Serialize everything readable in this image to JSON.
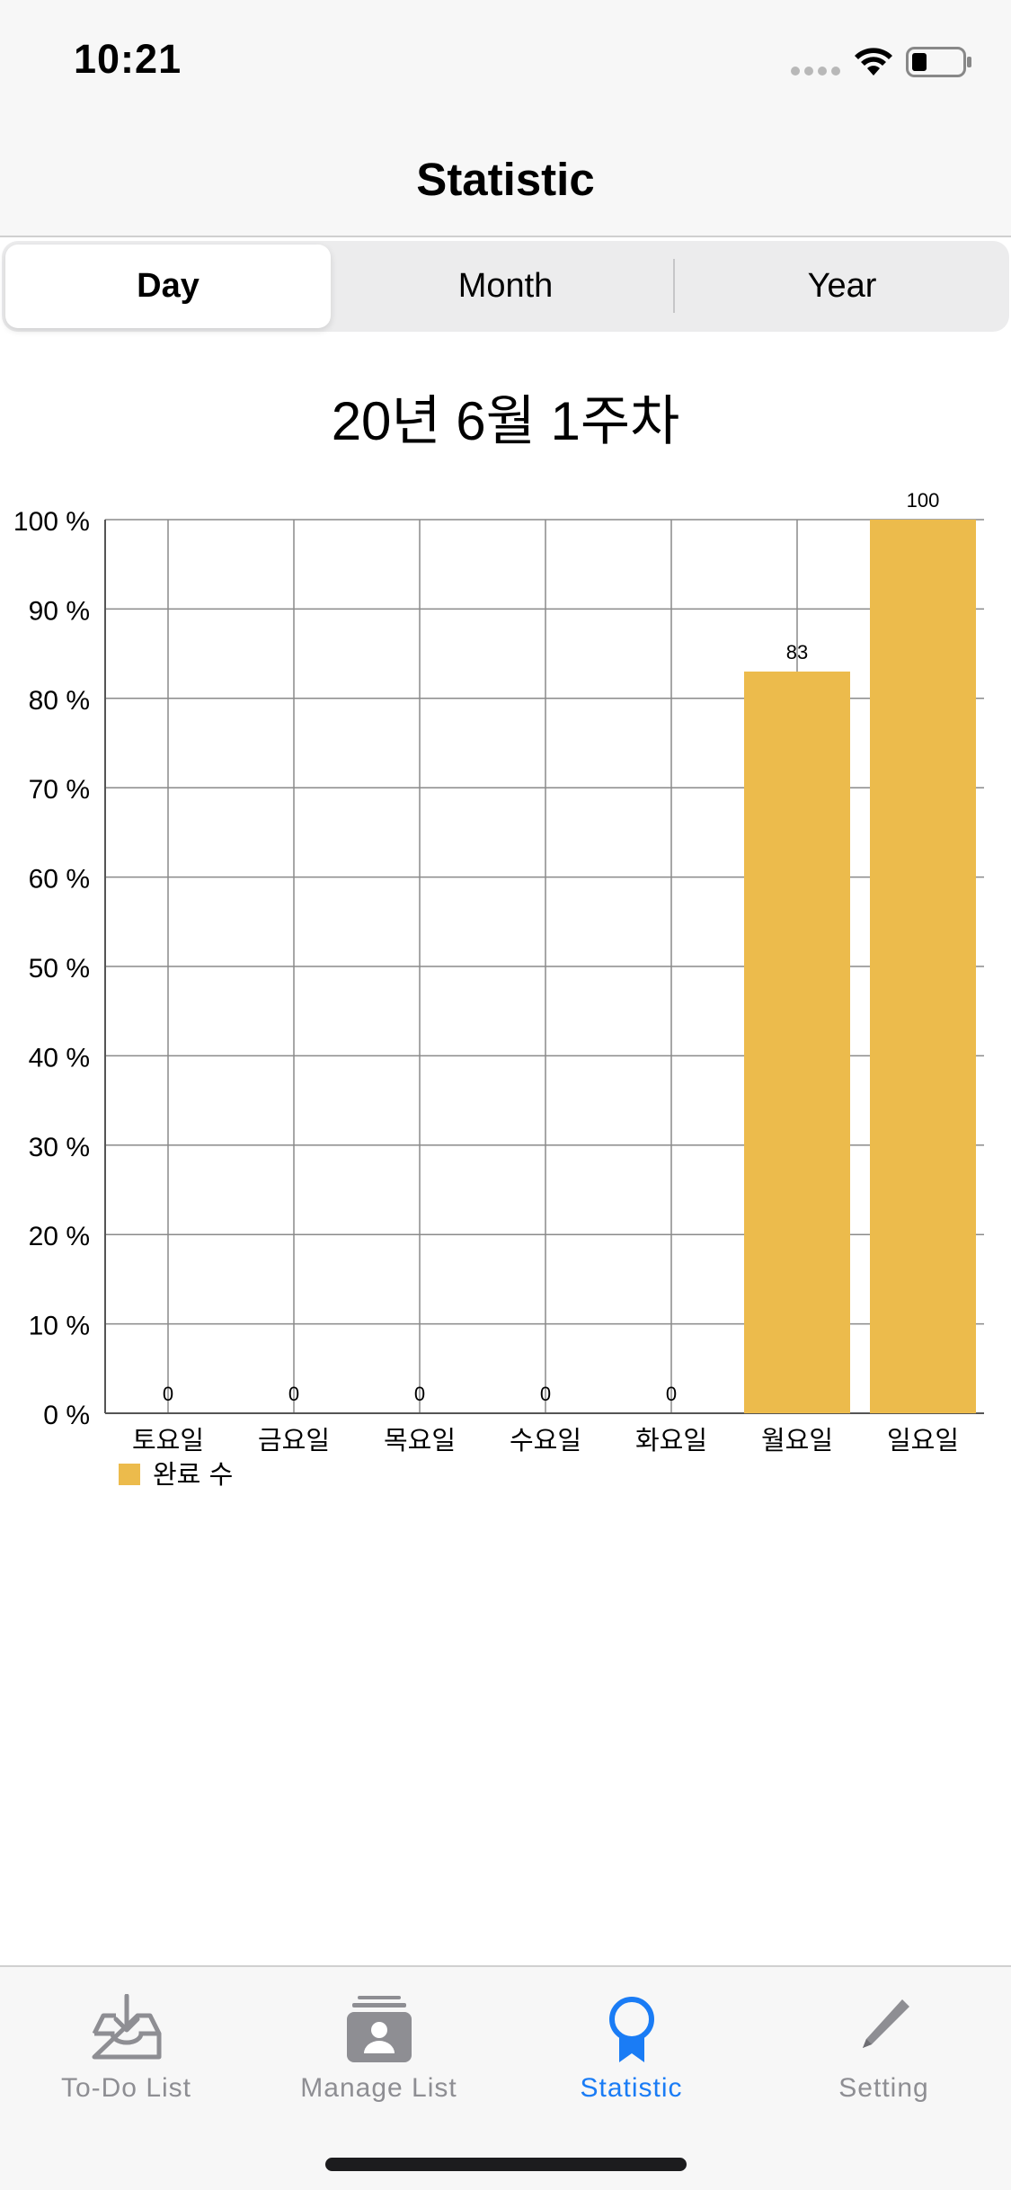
{
  "status_bar": {
    "time": "10:21"
  },
  "nav": {
    "title": "Statistic"
  },
  "segments": [
    {
      "label": "Day",
      "selected": true
    },
    {
      "label": "Month",
      "selected": false
    },
    {
      "label": "Year",
      "selected": false
    }
  ],
  "week_title": "20년 6월 1주차",
  "chart_data": {
    "type": "bar",
    "categories": [
      "토요일",
      "금요일",
      "목요일",
      "수요일",
      "화요일",
      "월요일",
      "일요일"
    ],
    "values": [
      0,
      0,
      0,
      0,
      0,
      83,
      100
    ],
    "value_labels": [
      "0",
      "0",
      "0",
      "0",
      "0",
      "83",
      "100"
    ],
    "y_ticks": [
      "0 %",
      "10 %",
      "20 %",
      "30 %",
      "40 %",
      "50 %",
      "60 %",
      "70 %",
      "80 %",
      "90 %",
      "100 %"
    ],
    "ylim": [
      0,
      100
    ],
    "grid": true,
    "legend_position": "bottom-left",
    "series": [
      {
        "name": "완료 수",
        "color": "#ecbb4c",
        "values": [
          0,
          0,
          0,
          0,
          0,
          83,
          100
        ]
      }
    ]
  },
  "tabs": [
    {
      "label": "To-Do List",
      "icon": "inbox-tray-icon",
      "active": false
    },
    {
      "label": "Manage List",
      "icon": "contact-card-icon",
      "active": false
    },
    {
      "label": "Statistic",
      "icon": "award-ribbon-icon",
      "active": true
    },
    {
      "label": "Setting",
      "icon": "pencil-icon",
      "active": false
    }
  ],
  "colors": {
    "accent": "#1a7cf5",
    "bar": "#ecbb4c",
    "inactive": "#8e8e93"
  }
}
